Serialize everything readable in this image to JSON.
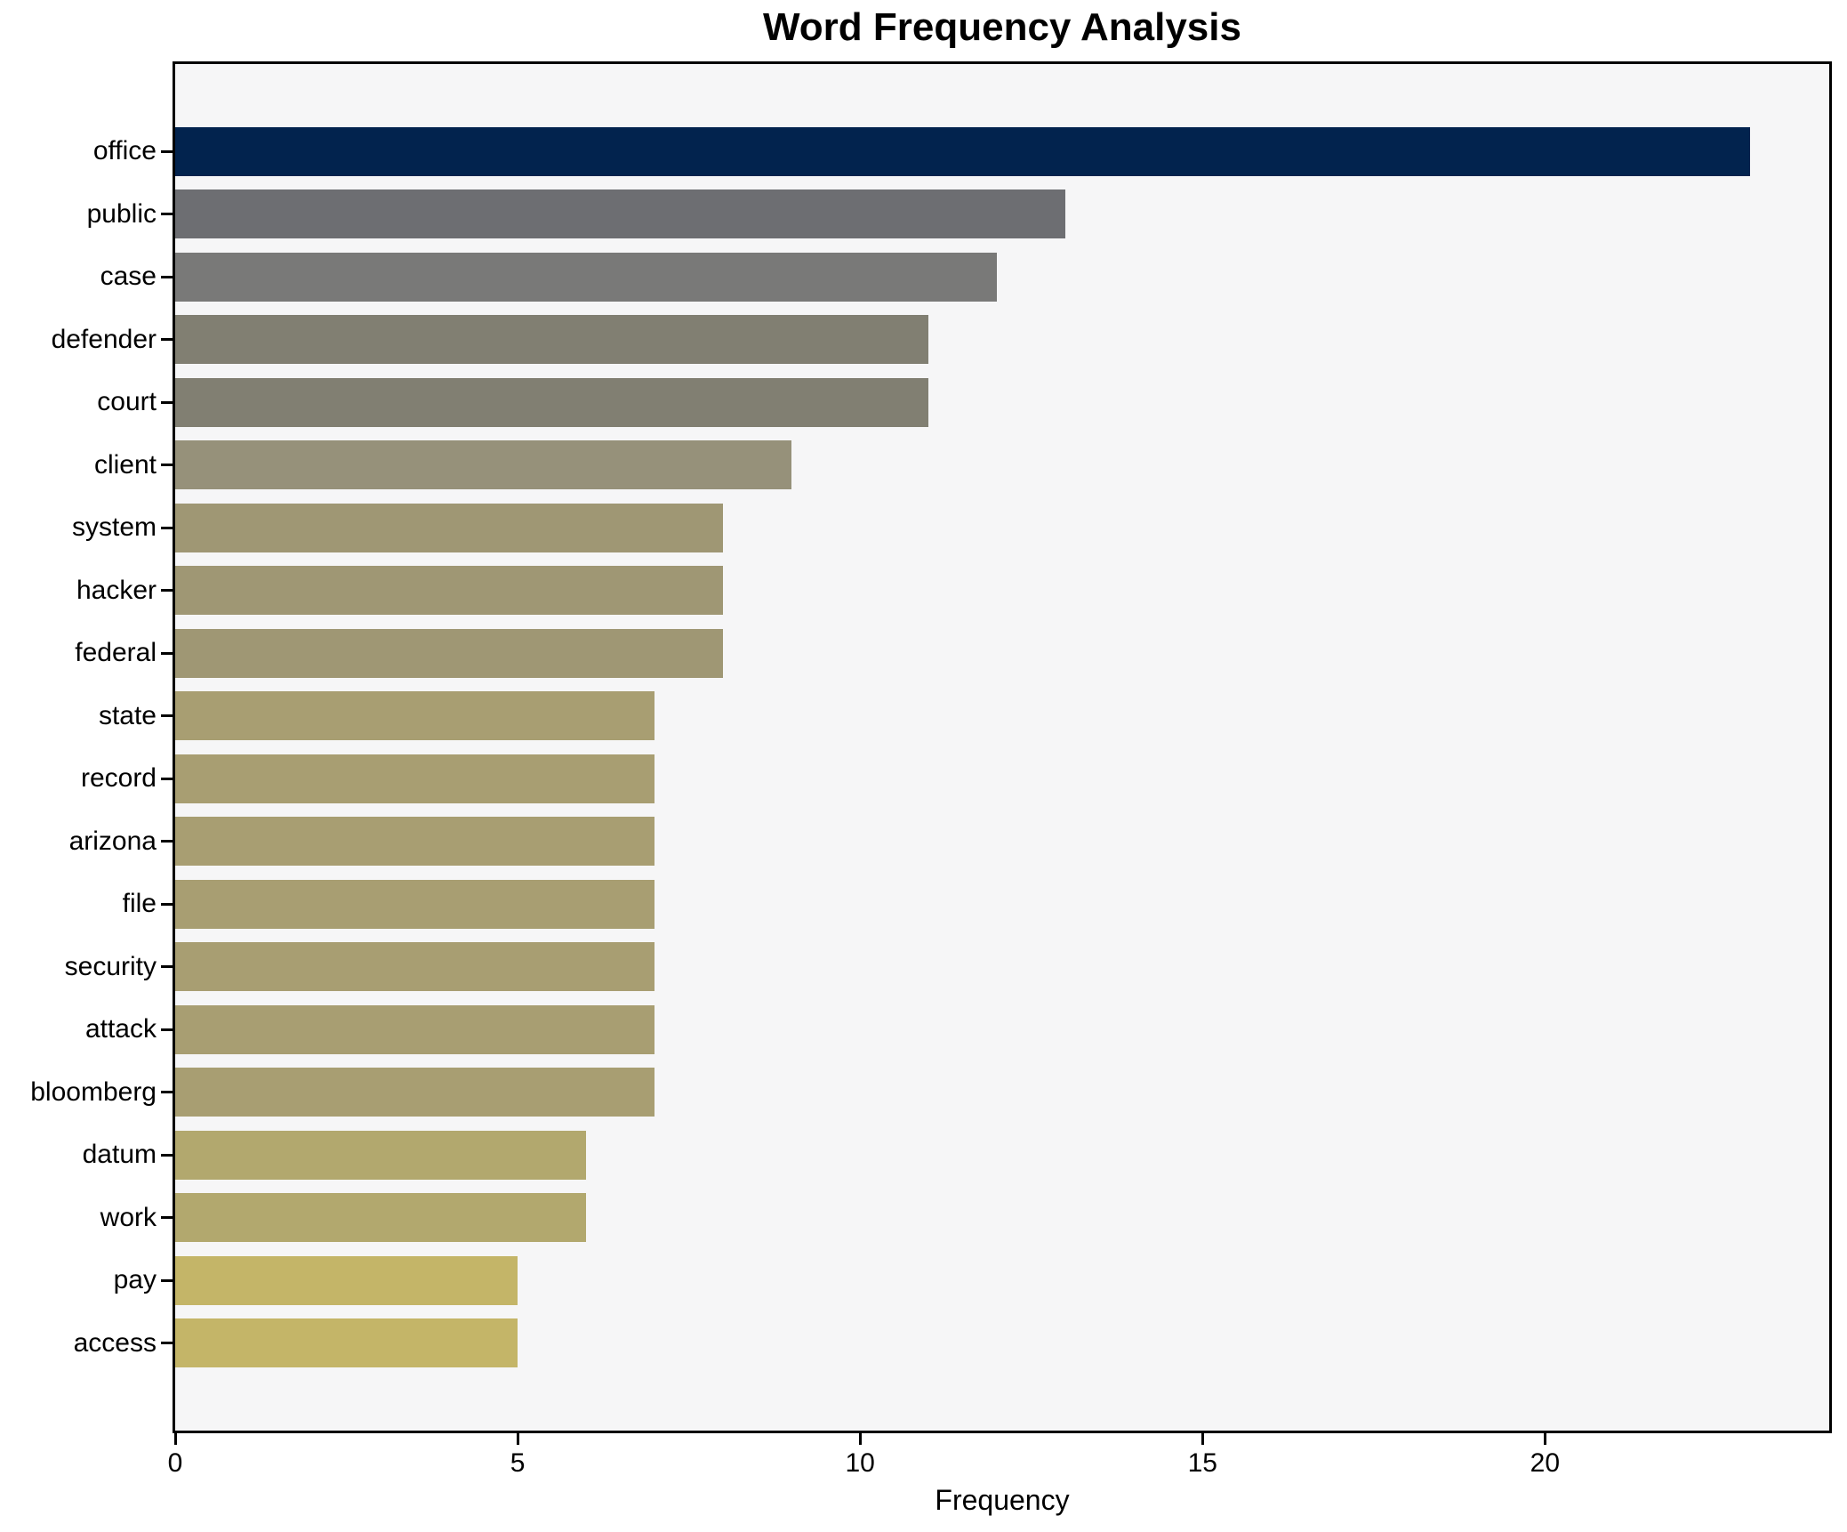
{
  "chart_data": {
    "type": "bar",
    "orientation": "horizontal",
    "title": "Word Frequency Analysis",
    "xlabel": "Frequency",
    "ylabel": "",
    "categories": [
      "office",
      "public",
      "case",
      "defender",
      "court",
      "client",
      "system",
      "hacker",
      "federal",
      "state",
      "record",
      "arizona",
      "file",
      "security",
      "attack",
      "bloomberg",
      "datum",
      "work",
      "pay",
      "access"
    ],
    "values": [
      23,
      13,
      12,
      11,
      11,
      9,
      8,
      8,
      8,
      7,
      7,
      7,
      7,
      7,
      7,
      7,
      6,
      6,
      5,
      5
    ],
    "bar_colors": [
      "#02234e",
      "#6d6e72",
      "#797978",
      "#817f72",
      "#817f72",
      "#96917a",
      "#9f9774",
      "#9f9774",
      "#9f9774",
      "#a89e72",
      "#a89e72",
      "#a89e72",
      "#a89e72",
      "#a89e72",
      "#a89e72",
      "#a89e72",
      "#b2a86e",
      "#b2a86e",
      "#c4b568",
      "#c4b568"
    ],
    "xticks": [
      "0",
      "5",
      "10",
      "15",
      "20"
    ],
    "xtick_values": [
      0,
      5,
      10,
      15,
      20
    ],
    "xlim": [
      0,
      24.15
    ],
    "grid": false,
    "legend": null,
    "plot_background": "#f6f6f7",
    "figure_background": "#ffffff",
    "spine_color": "#000000"
  }
}
